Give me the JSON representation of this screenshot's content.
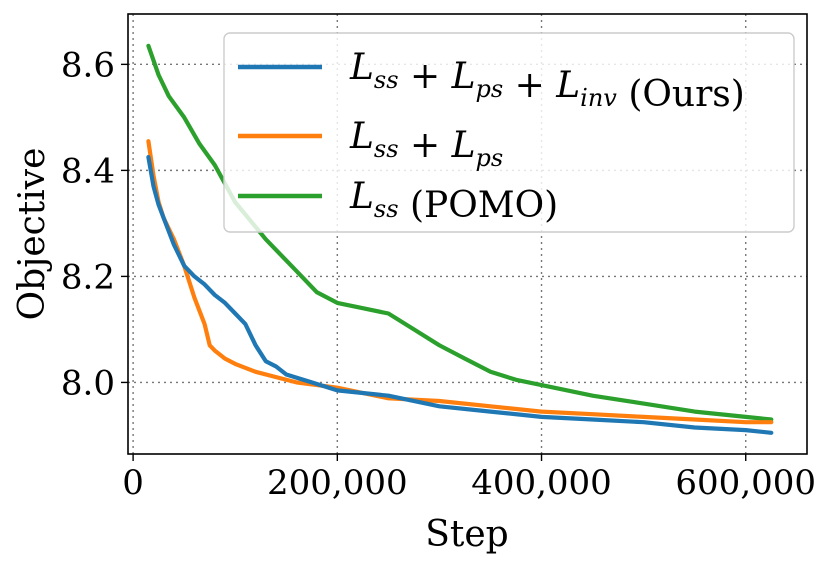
{
  "chart_data": {
    "type": "line",
    "title": "",
    "xlabel": "Step",
    "ylabel": "Objective",
    "xlim": [
      -5000,
      660000
    ],
    "ylim": [
      7.865,
      8.695
    ],
    "x_ticks": [
      0,
      200000,
      400000,
      600000
    ],
    "x_tick_labels": [
      "0",
      "200,000",
      "400,000",
      "600,000"
    ],
    "y_ticks": [
      8.0,
      8.2,
      8.4,
      8.6
    ],
    "y_tick_labels": [
      "8.0",
      "8.2",
      "8.4",
      "8.6"
    ],
    "grid": true,
    "legend_position": "top-right",
    "series": [
      {
        "name": "Lss + Lps + Linv (Ours)",
        "legend_parts": [
          [
            "L",
            "ss"
          ],
          [
            " + "
          ],
          [
            "L",
            "ps"
          ],
          [
            " + "
          ],
          [
            "L",
            "inv"
          ],
          [
            " (Ours)"
          ]
        ],
        "color": "#1f77b4",
        "x": [
          15000,
          20000,
          25000,
          30000,
          40000,
          50000,
          60000,
          70000,
          80000,
          90000,
          100000,
          110000,
          120000,
          130000,
          140000,
          150000,
          175000,
          200000,
          250000,
          300000,
          350000,
          400000,
          450000,
          500000,
          550000,
          600000,
          625000
        ],
        "y": [
          8.425,
          8.37,
          8.335,
          8.31,
          8.26,
          8.22,
          8.2,
          8.185,
          8.165,
          8.15,
          8.13,
          8.11,
          8.07,
          8.04,
          8.03,
          8.015,
          8.0,
          7.985,
          7.975,
          7.955,
          7.945,
          7.935,
          7.93,
          7.925,
          7.915,
          7.91,
          7.905
        ]
      },
      {
        "name": "Lss + Lps",
        "legend_parts": [
          [
            "L",
            "ss"
          ],
          [
            " + "
          ],
          [
            "L",
            "ps"
          ]
        ],
        "color": "#ff7f0e",
        "x": [
          15000,
          20000,
          25000,
          30000,
          40000,
          50000,
          60000,
          70000,
          75000,
          80000,
          90000,
          100000,
          120000,
          140000,
          160000,
          200000,
          250000,
          300000,
          350000,
          400000,
          450000,
          500000,
          550000,
          600000,
          625000
        ],
        "y": [
          8.455,
          8.39,
          8.34,
          8.31,
          8.27,
          8.22,
          8.16,
          8.11,
          8.07,
          8.06,
          8.045,
          8.035,
          8.02,
          8.01,
          8.0,
          7.99,
          7.97,
          7.965,
          7.955,
          7.945,
          7.94,
          7.935,
          7.93,
          7.925,
          7.925
        ]
      },
      {
        "name": "Lss (POMO)",
        "legend_parts": [
          [
            "L",
            "ss"
          ],
          [
            " (POMO)"
          ]
        ],
        "color": "#2ca02c",
        "x": [
          15000,
          25000,
          35000,
          50000,
          65000,
          80000,
          100000,
          130000,
          160000,
          180000,
          200000,
          225000,
          250000,
          275000,
          300000,
          325000,
          350000,
          375000,
          400000,
          450000,
          500000,
          550000,
          600000,
          625000
        ],
        "y": [
          8.635,
          8.58,
          8.54,
          8.5,
          8.45,
          8.41,
          8.34,
          8.27,
          8.21,
          8.17,
          8.15,
          8.14,
          8.13,
          8.1,
          8.07,
          8.045,
          8.02,
          8.005,
          7.995,
          7.975,
          7.96,
          7.945,
          7.935,
          7.93
        ]
      }
    ]
  }
}
